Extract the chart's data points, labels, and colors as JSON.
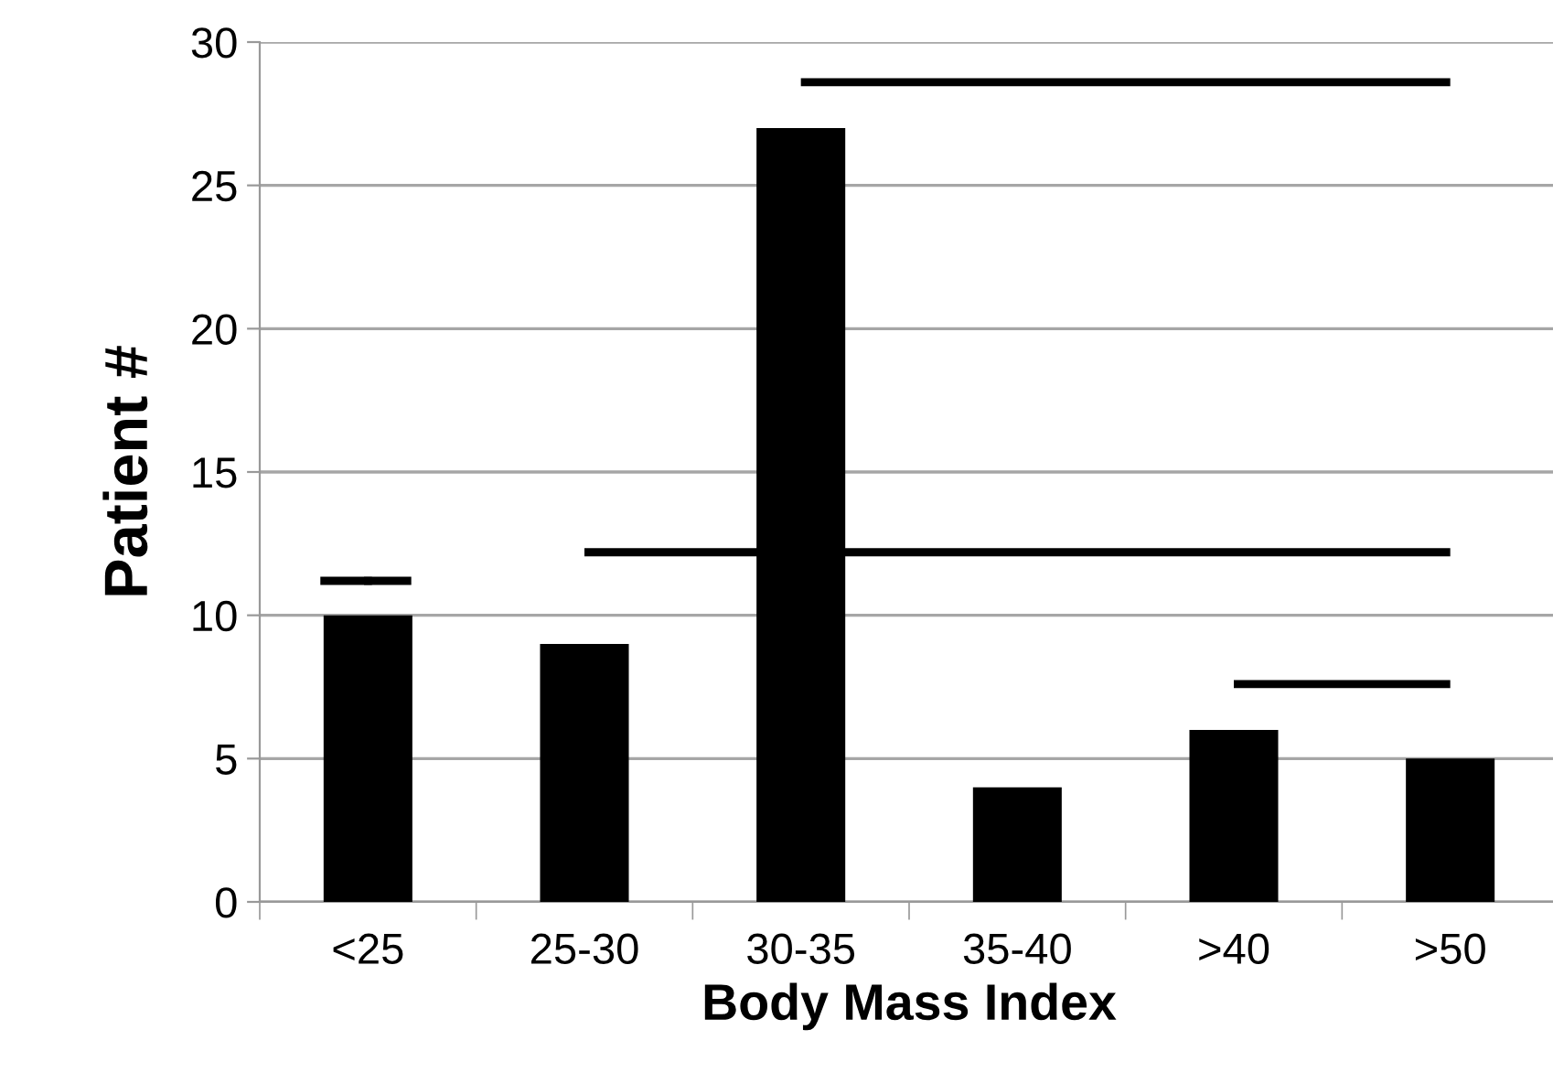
{
  "chart_data": {
    "type": "bar",
    "xlabel": "Body Mass Index",
    "ylabel": "Patient #",
    "categories": [
      "<25",
      "25-30",
      "30-35",
      "35-40",
      ">40",
      ">50"
    ],
    "series": [
      {
        "color": "#000000",
        "values": [
          10,
          9,
          27,
          4,
          6,
          5
        ]
      },
      {
        "type": "scatter",
        "color": "#000000",
        "values": [
          11.2,
          null,
          null,
          null,
          null,
          null
        ],
        "marker": "square"
      },
      {
        "type": "line",
        "color": "#000000",
        "values": [
          null,
          12.2,
          12.2,
          12.2,
          12.2,
          12.2
        ]
      },
      {
        "type": "line",
        "color": "#000000",
        "values": [
          null,
          null,
          28.6,
          28.6,
          28.6,
          28.6
        ]
      },
      {
        "type": "line",
        "color": "#000000",
        "values": [
          null,
          null,
          null,
          null,
          7.6,
          7.6
        ]
      }
    ],
    "ylim": [
      0,
      30
    ],
    "yticks": [
      0,
      5,
      10,
      15,
      20,
      25,
      30
    ],
    "grid": "y",
    "marker": "none",
    "line_style": "solid"
  }
}
